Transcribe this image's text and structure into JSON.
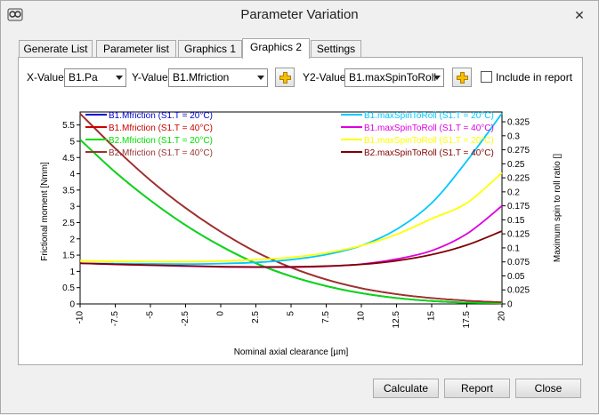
{
  "window": {
    "title": "Parameter Variation",
    "close_glyph": "✕",
    "icon": "app-icon"
  },
  "tabs": [
    {
      "label": "Generate List",
      "active": false
    },
    {
      "label": "Parameter list",
      "active": false
    },
    {
      "label": "Graphics 1",
      "active": false
    },
    {
      "label": "Graphics 2",
      "active": true
    },
    {
      "label": "Settings",
      "active": false
    }
  ],
  "controls": {
    "x_label": "X-Value",
    "x_value": "B1.Pa",
    "y_label": "Y-Value",
    "y_value": "B1.Mfriction",
    "y2_label": "Y2-Value",
    "y2_value": "B1.maxSpinToRoll",
    "include_label": "Include in report",
    "include_checked": false,
    "add_icon": "plus-icon"
  },
  "buttons": {
    "calculate": "Calculate",
    "report": "Report",
    "close": "Close"
  },
  "chart_data": {
    "type": "line",
    "xlabel": "Nominal axial clearance [µm]",
    "ylabel": "Frictional moment [Nmm]",
    "y2label": "Maximum spin to roll ratio []",
    "xlim": [
      -10,
      20
    ],
    "ylim": [
      0,
      5.9
    ],
    "y2lim": [
      0,
      0.3425
    ],
    "x_ticks": [
      "-10",
      "-7.5",
      "-5",
      "-2.5",
      "0",
      "2.5",
      "5",
      "7.5",
      "10",
      "12.5",
      "15",
      "17.5",
      "20"
    ],
    "y_ticks": [
      "0",
      "0.5",
      "1",
      "1.5",
      "2",
      "2.5",
      "3",
      "3.5",
      "4",
      "4.5",
      "5",
      "5.5"
    ],
    "y2_ticks": [
      "0",
      "0.025",
      "0.05",
      "0.075",
      "0.1",
      "0.125",
      "0.15",
      "0.175",
      "0.2",
      "0.225",
      "0.25",
      "0.275",
      "0.3",
      "0.325"
    ],
    "grid": false,
    "legend_left": "top-left",
    "legend_right": "top-right",
    "x": [
      -10,
      -7.5,
      -5,
      -2.5,
      0,
      2.5,
      5,
      7.5,
      10,
      12.5,
      15,
      17.5,
      20
    ],
    "series": [
      {
        "name": "B1.Mfriction (S1.T = 20°C)",
        "axis": "y",
        "color": "#0000cc",
        "values": [
          5.05,
          4.05,
          3.18,
          2.42,
          1.78,
          1.25,
          0.85,
          0.55,
          0.33,
          0.18,
          0.09,
          0.04,
          0.02
        ]
      },
      {
        "name": "B1.Mfriction (S1.T = 40°C)",
        "axis": "y",
        "color": "#cc0000",
        "values": [
          5.85,
          4.78,
          3.8,
          2.95,
          2.22,
          1.6,
          1.12,
          0.75,
          0.48,
          0.3,
          0.18,
          0.1,
          0.05
        ]
      },
      {
        "name": "B2.Mfriction (S1.T = 20°C)",
        "axis": "y",
        "color": "#00e000",
        "values": [
          5.05,
          4.05,
          3.18,
          2.42,
          1.78,
          1.25,
          0.85,
          0.55,
          0.33,
          0.18,
          0.09,
          0.04,
          0.02
        ]
      },
      {
        "name": "B2.Mfriction (S1.T = 40°C)",
        "axis": "y",
        "color": "#993333",
        "values": [
          5.85,
          4.78,
          3.8,
          2.95,
          2.22,
          1.6,
          1.12,
          0.75,
          0.48,
          0.3,
          0.18,
          0.1,
          0.05
        ]
      },
      {
        "name": "B1.maxSpinToRoll (S1.T = 20°C)",
        "axis": "y2",
        "color": "#00c8ff",
        "values": [
          0.0725,
          0.072,
          0.0715,
          0.0712,
          0.072,
          0.074,
          0.079,
          0.088,
          0.104,
          0.133,
          0.18,
          0.255,
          0.34
        ]
      },
      {
        "name": "B1.maxSpinToRoll (S1.T = 40°C)",
        "axis": "y2",
        "color": "#dd00dd",
        "values": [
          0.0725,
          0.0705,
          0.069,
          0.0675,
          0.066,
          0.0655,
          0.0655,
          0.067,
          0.071,
          0.08,
          0.095,
          0.125,
          0.175
        ]
      },
      {
        "name": "B1.maxSpinToRoll (S1.T = 20°C)",
        "axis": "y2",
        "color": "#ffff00",
        "values": [
          0.077,
          0.076,
          0.0755,
          0.0755,
          0.0765,
          0.079,
          0.083,
          0.091,
          0.104,
          0.124,
          0.152,
          0.18,
          0.234
        ]
      },
      {
        "name": "B2.maxSpinToRoll (S1.T = 40°C)",
        "axis": "y2",
        "color": "#800000",
        "values": [
          0.0725,
          0.0708,
          0.0692,
          0.068,
          0.0665,
          0.066,
          0.0662,
          0.0675,
          0.0705,
          0.077,
          0.088,
          0.105,
          0.13
        ]
      }
    ]
  }
}
